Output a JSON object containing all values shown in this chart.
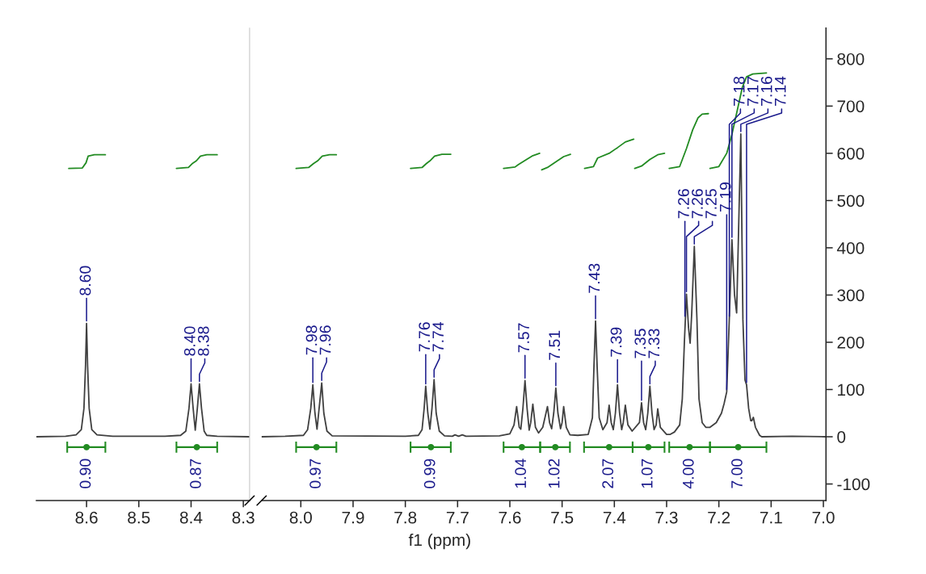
{
  "chart_data": [
    {
      "type": "line",
      "xlim": [
        8.696,
        8.288
      ],
      "ylim": [
        -135,
        865
      ],
      "xticks": [
        8.6,
        8.5,
        8.4,
        8.3
      ],
      "yticks": [
        -100,
        0,
        100,
        200,
        300,
        400,
        500,
        600,
        700,
        800
      ],
      "tick_labels": "x",
      "series": [
        {
          "color": "#404040",
          "x": [
            8.696,
            8.64,
            8.62,
            8.61,
            8.605,
            8.602,
            8.6,
            8.598,
            8.595,
            8.59,
            8.58,
            8.55,
            8.45,
            8.42,
            8.41,
            8.404,
            8.4,
            8.396,
            8.392,
            8.388,
            8.384,
            8.38,
            8.375,
            8.37,
            8.35,
            8.288
          ],
          "values": [
            0,
            1,
            4,
            15,
            60,
            150,
            240,
            150,
            60,
            15,
            4,
            1,
            1,
            3,
            12,
            60,
            112,
            60,
            14,
            60,
            112,
            60,
            12,
            3,
            1,
            0
          ]
        },
        {
          "type": "scatter",
          "color": "#228b22",
          "x": [
            8.6,
            8.389
          ],
          "values": [
            -22,
            -22
          ],
          "xerrors": [
            [
              8.564,
              8.637
            ],
            [
              8.35,
              8.428
            ]
          ]
        },
        {
          "color": "#228b22",
          "x": [
            8.634,
            8.608,
            8.601,
            8.597,
            8.585,
            8.564,
            8.5,
            8.428,
            8.405,
            8.398,
            8.39,
            8.382,
            8.37,
            8.35
          ],
          "values": [
            568,
            569,
            580,
            594,
            597,
            597,
            null,
            568,
            570,
            578,
            584,
            594,
            597,
            597
          ]
        }
      ],
      "annotations": [
        {
          "text": "8.60",
          "x": 8.6,
          "y": 240
        },
        {
          "text": "8.40",
          "x": 8.4,
          "y": 112
        },
        {
          "text": "8.38",
          "x": 8.384,
          "y": 112
        },
        {
          "text": "0.90",
          "x": 8.6,
          "y": -22
        },
        {
          "text": "0.87",
          "x": 8.389,
          "y": -22
        }
      ]
    },
    {
      "type": "line",
      "xlim": [
        8.075,
        6.995
      ],
      "ylim": [
        -135,
        865
      ],
      "xticks": [
        {
          "value": 8.0,
          "label": "8.0"
        },
        7.9,
        7.8,
        7.7,
        7.6,
        7.5,
        7.4,
        7.3,
        7.2,
        7.1,
        {
          "value": 7.0,
          "label": "7.0"
        }
      ],
      "yticks": [
        -100,
        0,
        100,
        200,
        300,
        400,
        500,
        600,
        700,
        800
      ],
      "xlabel": "f1 (ppm)",
      "series": [
        {
          "color": "#404040",
          "x": [
            8.075,
            8.03,
            7.995,
            7.987,
            7.981,
            7.977,
            7.973,
            7.969,
            7.965,
            7.96,
            7.956,
            7.95,
            7.94,
            7.8,
            7.775,
            7.768,
            7.764,
            7.761,
            7.757,
            7.753,
            7.749,
            7.745,
            7.741,
            7.735,
            7.725,
            7.71,
            7.705,
            7.698,
            7.691,
            7.684,
            7.62,
            7.6,
            7.592,
            7.587,
            7.582,
            7.579,
            7.575,
            7.571,
            7.567,
            7.563,
            7.56,
            7.556,
            7.551,
            7.545,
            7.537,
            7.528,
            7.524,
            7.52,
            7.516,
            7.512,
            7.508,
            7.503,
            7.5,
            7.497,
            7.492,
            7.485,
            7.47,
            7.45,
            7.442,
            7.439,
            7.436,
            7.433,
            7.429,
            7.422,
            7.414,
            7.41,
            7.406,
            7.402,
            7.398,
            7.394,
            7.39,
            7.386,
            7.383,
            7.379,
            7.374,
            7.366,
            7.352,
            7.348,
            7.344,
            7.34,
            7.336,
            7.332,
            7.328,
            7.324,
            7.32,
            7.317,
            7.312,
            7.3,
            7.293,
            7.285,
            7.275,
            7.27,
            7.266,
            7.262,
            7.258,
            7.255,
            7.252,
            7.247,
            7.242,
            7.238,
            7.232,
            7.225,
            7.217,
            7.205,
            7.195,
            7.19,
            7.185,
            7.18,
            7.175,
            7.17,
            7.166,
            7.162,
            7.158,
            7.154,
            7.15,
            7.147,
            7.143,
            7.139,
            7.137,
            7.134,
            7.13,
            7.122,
            7.118,
            7.06,
            6.995
          ],
          "values": [
            0,
            1,
            3,
            15,
            60,
            110,
            50,
            16,
            60,
            114,
            50,
            12,
            2,
            1,
            3,
            15,
            60,
            107,
            50,
            16,
            60,
            121,
            50,
            12,
            2,
            1,
            4,
            1,
            4,
            1,
            2,
            6,
            25,
            64,
            20,
            16,
            60,
            119,
            60,
            14,
            30,
            69,
            20,
            8,
            20,
            64,
            30,
            17,
            50,
            103,
            50,
            17,
            30,
            64,
            20,
            4,
            3,
            5,
            40,
            150,
            245,
            150,
            40,
            15,
            30,
            67,
            30,
            15,
            50,
            110,
            50,
            15,
            30,
            67,
            25,
            12,
            30,
            72,
            30,
            15,
            50,
            107,
            50,
            15,
            25,
            59,
            20,
            5,
            5,
            10,
            25,
            80,
            200,
            302,
            230,
            198,
            260,
            403,
            250,
            80,
            30,
            20,
            20,
            30,
            50,
            70,
            95,
            250,
            417,
            300,
            262,
            450,
            641,
            248,
            120,
            110,
            60,
            34,
            34,
            41,
            20,
            3,
            0,
            1,
            0
          ]
        },
        {
          "type": "scatter",
          "color": "#228b22",
          "x": [
            7.97,
            7.751,
            7.577,
            7.513,
            7.41,
            7.335,
            7.256,
            7.163
          ],
          "values": [
            -22,
            -22,
            -22,
            -22,
            -22,
            -22,
            -22,
            -22
          ],
          "xerrors": [
            [
              7.932,
              8.009
            ],
            [
              7.713,
              7.79
            ],
            [
              7.542,
              7.612
            ],
            [
              7.485,
              7.542
            ],
            [
              7.365,
              7.458
            ],
            [
              7.304,
              7.365
            ],
            [
              7.217,
              7.295
            ],
            [
              7.109,
              7.217
            ]
          ]
        },
        {
          "color": "#228b22",
          "x": [
            8.009,
            7.985,
            7.976,
            7.968,
            7.959,
            7.945,
            7.932,
            7.85,
            7.79,
            7.768,
            7.76,
            7.753,
            7.744,
            7.73,
            7.713,
            7.65,
            7.612,
            7.59,
            7.584,
            7.571,
            7.556,
            7.543,
            7.541,
            7.539,
            7.528,
            7.512,
            7.497,
            7.484,
            7.47,
            7.457,
            7.44,
            7.432,
            7.41,
            7.394,
            7.379,
            7.363,
            7.362,
            7.361,
            7.348,
            7.332,
            7.317,
            7.304,
            7.3,
            7.295,
            7.275,
            7.262,
            7.25,
            7.24,
            7.232,
            7.22,
            7.218,
            7.217,
            7.2,
            7.185,
            7.175,
            7.165,
            7.155,
            7.147,
            7.135,
            7.109
          ],
          "values": [
            568,
            570,
            578,
            584,
            594,
            597,
            597,
            null,
            568,
            570,
            578,
            584,
            594,
            598,
            598,
            null,
            568,
            571,
            576,
            585,
            595,
            600,
            null,
            565,
            570,
            582,
            593,
            598,
            null,
            568,
            572,
            590,
            600,
            612,
            624,
            630,
            null,
            568,
            573,
            587,
            597,
            600,
            null,
            568,
            572,
            610,
            650,
            675,
            683,
            684,
            null,
            568,
            572,
            600,
            640,
            690,
            740,
            762,
            768,
            770
          ]
        }
      ],
      "annotations": [
        {
          "text": "7.98",
          "x": 7.977,
          "y": 110
        },
        {
          "text": "7.96",
          "x": 7.96,
          "y": 114
        },
        {
          "text": "7.76",
          "x": 7.761,
          "y": 107
        },
        {
          "text": "7.74",
          "x": 7.745,
          "y": 121
        },
        {
          "text": "7.57",
          "x": 7.571,
          "y": 119
        },
        {
          "text": "7.51",
          "x": 7.512,
          "y": 103
        },
        {
          "text": "7.43",
          "x": 7.436,
          "y": 245
        },
        {
          "text": "7.39",
          "x": 7.394,
          "y": 110
        },
        {
          "text": "7.35",
          "x": 7.348,
          "y": 72
        },
        {
          "text": "7.33",
          "x": 7.332,
          "y": 107
        },
        {
          "text": "7.26",
          "x": 7.265,
          "y": 250
        },
        {
          "text": "7.26",
          "x": 7.262,
          "y": 302
        },
        {
          "text": "7.25",
          "x": 7.247,
          "y": 403
        },
        {
          "text": "7.19",
          "x": 7.185,
          "y": 95
        },
        {
          "text": "7.18",
          "x": 7.18,
          "y": 250
        },
        {
          "text": "7.17",
          "x": 7.175,
          "y": 417
        },
        {
          "text": "7.16",
          "x": 7.158,
          "y": 641
        },
        {
          "text": "7.14",
          "x": 7.147,
          "y": 110
        },
        {
          "text": "0.97",
          "x": 7.97,
          "y": -22
        },
        {
          "text": "0.99",
          "x": 7.751,
          "y": -22
        },
        {
          "text": "1.04",
          "x": 7.577,
          "y": -22
        },
        {
          "text": "1.02",
          "x": 7.513,
          "y": -22
        },
        {
          "text": "2.07",
          "x": 7.41,
          "y": -22
        },
        {
          "text": "1.07",
          "x": 7.335,
          "y": -22
        },
        {
          "text": "4.00",
          "x": 7.256,
          "y": -22
        },
        {
          "text": "7.00",
          "x": 7.163,
          "y": -22
        }
      ]
    }
  ]
}
